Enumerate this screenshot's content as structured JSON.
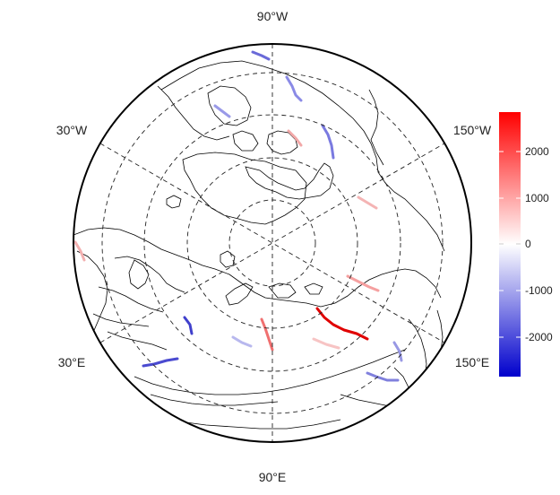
{
  "map": {
    "projection": "north-polar-stereographic",
    "longitude_labels": {
      "top": "90°W",
      "upper_left": "30°W",
      "upper_right": "150°W",
      "lower_left": "30°E",
      "lower_right": "150°E",
      "bottom": "90°E"
    },
    "graticule_style": "dashed",
    "colors": {
      "negative": "#0000cc",
      "neutral": "#ffffff",
      "positive": "#ff0000",
      "coast": "#000000"
    }
  },
  "colorbar": {
    "ticks": [
      "2000",
      "1000",
      "0",
      "-1000",
      "-2000"
    ],
    "tick_values": [
      2000,
      1000,
      0,
      -1000,
      -2000
    ],
    "range": [
      -2800,
      2800
    ]
  }
}
